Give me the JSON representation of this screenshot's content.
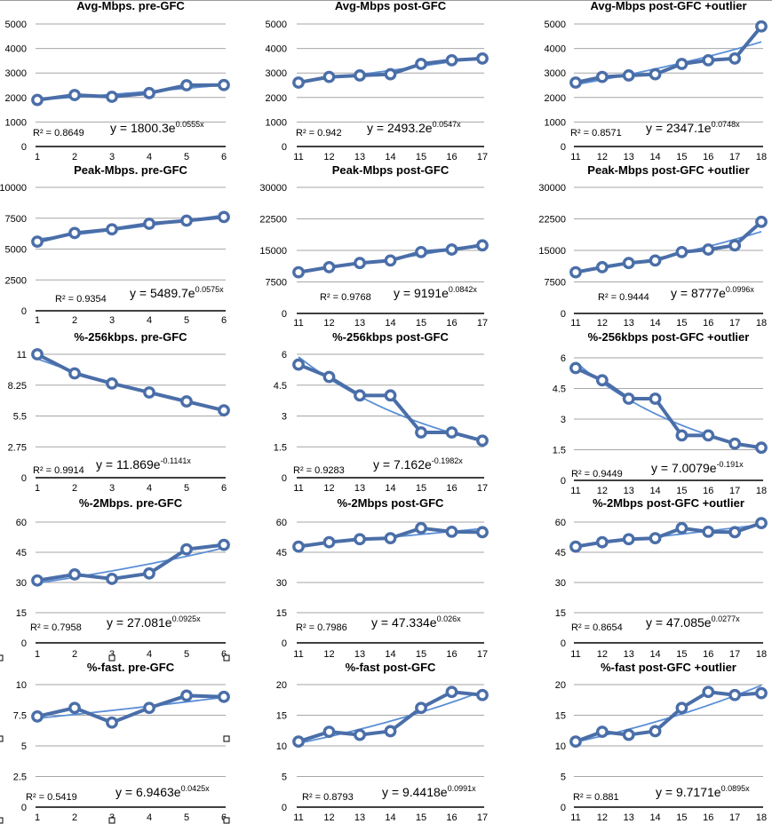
{
  "page": {
    "description": "Grid of 15 line charts with exponential trendlines (5 metrics x pre-GFC / post-GFC / post-GFC +outlier)",
    "colors": {
      "series": "#4a6ea8",
      "marker_fill": "#ffffff",
      "trendline": "#5b8fd6",
      "gridline": "#a6a6a6",
      "axis": "#000000"
    }
  },
  "chart_data": [
    {
      "type": "line",
      "title": "Avg-Mbps.  pre-GFC",
      "x": [
        1,
        2,
        3,
        4,
        5,
        6
      ],
      "series": [
        {
          "name": "Avg-Mbps",
          "values": [
            1900,
            2100,
            2030,
            2180,
            2500,
            2510
          ]
        }
      ],
      "ylim": [
        0,
        5000
      ],
      "yticks": [
        0,
        1000,
        2000,
        3000,
        4000,
        5000
      ],
      "ytick_labels": [
        "0",
        "1000",
        "2000",
        "3000",
        "4000",
        "5000"
      ],
      "xtick_labels": [
        "1",
        "2",
        "3",
        "4",
        "5",
        "6"
      ],
      "grid": true,
      "trendline": {
        "type": "exponential",
        "a": 1800.3,
        "b": 0.0555,
        "x_offset": 0,
        "equation": "y = 1800.3e",
        "exponent": "0.0555x",
        "r2_label": "R² = 0.8649"
      }
    },
    {
      "type": "line",
      "title": "Avg-Mbps post-GFC",
      "x": [
        11,
        12,
        13,
        14,
        15,
        16,
        17
      ],
      "series": [
        {
          "name": "Avg-Mbps",
          "values": [
            2610,
            2840,
            2900,
            2950,
            3370,
            3520,
            3590
          ]
        }
      ],
      "ylim": [
        0,
        5000
      ],
      "yticks": [
        0,
        1000,
        2000,
        3000,
        4000,
        5000
      ],
      "ytick_labels": [
        "0",
        "1000",
        "2000",
        "3000",
        "4000",
        "5000"
      ],
      "xtick_labels": [
        "11",
        "12",
        "13",
        "14",
        "15",
        "16",
        "17"
      ],
      "grid": true,
      "trendline": {
        "type": "exponential",
        "a": 2493.2,
        "b": 0.0547,
        "x_offset": 10,
        "equation": "y = 2493.2e",
        "exponent": "0.0547x",
        "r2_label": "R² = 0.942"
      }
    },
    {
      "type": "line",
      "title": "Avg-Mbps post-GFC +outlier",
      "x": [
        11,
        12,
        13,
        14,
        15,
        16,
        17,
        18
      ],
      "series": [
        {
          "name": "Avg-Mbps",
          "values": [
            2610,
            2840,
            2900,
            2950,
            3370,
            3520,
            3590,
            4900
          ]
        }
      ],
      "ylim": [
        0,
        5000
      ],
      "yticks": [
        0,
        1000,
        2000,
        3000,
        4000,
        5000
      ],
      "ytick_labels": [
        "0",
        "1000",
        "2000",
        "3000",
        "4000",
        "5000"
      ],
      "xtick_labels": [
        "11",
        "12",
        "13",
        "14",
        "15",
        "16",
        "17",
        "18"
      ],
      "grid": true,
      "trendline": {
        "type": "exponential",
        "a": 2347.1,
        "b": 0.0748,
        "x_offset": 10,
        "equation": "y = 2347.1e",
        "exponent": "0.0748x",
        "r2_label": "R² = 0.8571"
      }
    },
    {
      "type": "line",
      "title": "Peak-Mbps.  pre-GFC",
      "x": [
        1,
        2,
        3,
        4,
        5,
        6
      ],
      "series": [
        {
          "name": "Peak-Mbps",
          "values": [
            5600,
            6300,
            6600,
            7050,
            7300,
            7600
          ]
        }
      ],
      "ylim": [
        0,
        10000
      ],
      "yticks": [
        0,
        2500,
        5000,
        7500,
        10000
      ],
      "ytick_labels": [
        "0",
        "2500",
        "5000",
        "7500",
        "10000"
      ],
      "xtick_labels": [
        "1",
        "2",
        "3",
        "4",
        "5",
        "6"
      ],
      "grid": true,
      "trendline": {
        "type": "exponential",
        "a": 5489.7,
        "b": 0.0575,
        "x_offset": 0,
        "equation": "y = 5489.7e",
        "exponent": "0.0575x",
        "r2_label": "R² = 0.9354"
      }
    },
    {
      "type": "line",
      "title": "Peak-Mbps post-GFC",
      "x": [
        11,
        12,
        13,
        14,
        15,
        16,
        17
      ],
      "series": [
        {
          "name": "Peak-Mbps",
          "values": [
            9800,
            11000,
            12000,
            12600,
            14600,
            15200,
            16200
          ]
        }
      ],
      "ylim": [
        0,
        30000
      ],
      "yticks": [
        0,
        7500,
        15000,
        22500,
        30000
      ],
      "ytick_labels": [
        "0",
        "7500",
        "15000",
        "22500",
        "30000"
      ],
      "xtick_labels": [
        "11",
        "12",
        "13",
        "14",
        "15",
        "16",
        "17"
      ],
      "grid": true,
      "trendline": {
        "type": "exponential",
        "a": 9191,
        "b": 0.0842,
        "x_offset": 10,
        "equation": "y = 9191e",
        "exponent": "0.0842x",
        "r2_label": "R² = 0.9768"
      }
    },
    {
      "type": "line",
      "title": "Peak-Mbps post-GFC +outlier",
      "x": [
        11,
        12,
        13,
        14,
        15,
        16,
        17,
        18
      ],
      "series": [
        {
          "name": "Peak-Mbps",
          "values": [
            9800,
            11000,
            12000,
            12600,
            14600,
            15200,
            16200,
            21800
          ]
        }
      ],
      "ylim": [
        0,
        30000
      ],
      "yticks": [
        0,
        7500,
        15000,
        22500,
        30000
      ],
      "ytick_labels": [
        "0",
        "7500",
        "15000",
        "22500",
        "30000"
      ],
      "xtick_labels": [
        "11",
        "12",
        "13",
        "14",
        "15",
        "16",
        "17",
        "18"
      ],
      "grid": true,
      "trendline": {
        "type": "exponential",
        "a": 8777,
        "b": 0.0996,
        "x_offset": 10,
        "equation": "y = 8777e",
        "exponent": "0.0996x",
        "r2_label": "R² = 0.9444"
      }
    },
    {
      "type": "line",
      "title": "%-256kbps.  pre-GFC",
      "x": [
        1,
        2,
        3,
        4,
        5,
        6
      ],
      "series": [
        {
          "name": "%-256kbps",
          "values": [
            11.0,
            9.3,
            8.4,
            7.6,
            6.8,
            6.0
          ]
        }
      ],
      "ylim": [
        0,
        11
      ],
      "yticks": [
        0,
        2.75,
        5.5,
        8.25,
        11
      ],
      "ytick_labels": [
        "0",
        "2.75",
        "5.5",
        "8.25",
        "11"
      ],
      "xtick_labels": [
        "1",
        "2",
        "3",
        "4",
        "5",
        "6"
      ],
      "grid": true,
      "trendline": {
        "type": "exponential",
        "a": 11.869,
        "b": -0.1141,
        "x_offset": 0,
        "equation": "y = 11.869e",
        "exponent": "-0.1141x",
        "r2_label": "R² = 0.9914"
      }
    },
    {
      "type": "line",
      "title": "%-256kbps post-GFC",
      "x": [
        11,
        12,
        13,
        14,
        15,
        16,
        17
      ],
      "series": [
        {
          "name": "%-256kbps",
          "values": [
            5.5,
            4.9,
            4.0,
            4.0,
            2.2,
            2.2,
            1.8
          ]
        }
      ],
      "ylim": [
        0,
        6
      ],
      "yticks": [
        0,
        1.5,
        3,
        4.5,
        6
      ],
      "ytick_labels": [
        "0",
        "1.5",
        "3",
        "4.5",
        "6"
      ],
      "xtick_labels": [
        "11",
        "12",
        "13",
        "14",
        "15",
        "16",
        "17"
      ],
      "grid": true,
      "trendline": {
        "type": "exponential",
        "a": 7.162,
        "b": -0.1982,
        "x_offset": 10,
        "equation": "y = 7.162e",
        "exponent": "-0.1982x",
        "r2_label": "R² = 0.9283"
      }
    },
    {
      "type": "line",
      "title": "%-256kbps post-GFC +outlier",
      "x": [
        11,
        12,
        13,
        14,
        15,
        16,
        17,
        18
      ],
      "series": [
        {
          "name": "%-256kbps",
          "values": [
            5.5,
            4.9,
            4.0,
            4.0,
            2.2,
            2.2,
            1.8,
            1.6
          ]
        }
      ],
      "ylim": [
        0,
        6
      ],
      "yticks": [
        0,
        1.5,
        3,
        4.5,
        6
      ],
      "ytick_labels": [
        "0",
        "1.5",
        "3",
        "4.5",
        "6"
      ],
      "xtick_labels": [
        "11",
        "12",
        "13",
        "14",
        "15",
        "16",
        "17",
        "18"
      ],
      "grid": true,
      "trendline": {
        "type": "exponential",
        "a": 7.0079,
        "b": -0.191,
        "x_offset": 10,
        "equation": "y = 7.0079e",
        "exponent": "-0.191x",
        "r2_label": "R² = 0.9449"
      }
    },
    {
      "type": "line",
      "title": "%-2Mbps.  pre-GFC",
      "x": [
        1,
        2,
        3,
        4,
        5,
        6
      ],
      "series": [
        {
          "name": "%-2Mbps",
          "values": [
            31,
            34,
            31.8,
            34.5,
            46.5,
            48.7
          ]
        }
      ],
      "ylim": [
        0,
        60
      ],
      "yticks": [
        0,
        15,
        30,
        45,
        60
      ],
      "ytick_labels": [
        "0",
        "15",
        "30",
        "45",
        "60"
      ],
      "xtick_labels": [
        "1",
        "2",
        "3",
        "4",
        "5",
        "6"
      ],
      "grid": true,
      "trendline": {
        "type": "exponential",
        "a": 27.081,
        "b": 0.0925,
        "x_offset": 0,
        "equation": "y = 27.081e",
        "exponent": "0.0925x",
        "r2_label": "R² = 0.7958"
      }
    },
    {
      "type": "line",
      "title": "%-2Mbps post-GFC",
      "x": [
        11,
        12,
        13,
        14,
        15,
        16,
        17
      ],
      "series": [
        {
          "name": "%-2Mbps",
          "values": [
            47.8,
            50,
            51.5,
            52,
            57,
            55.2,
            55
          ]
        }
      ],
      "ylim": [
        0,
        60
      ],
      "yticks": [
        0,
        15,
        30,
        45,
        60
      ],
      "ytick_labels": [
        "0",
        "15",
        "30",
        "45",
        "60"
      ],
      "xtick_labels": [
        "11",
        "12",
        "13",
        "14",
        "15",
        "16",
        "17"
      ],
      "grid": true,
      "trendline": {
        "type": "exponential",
        "a": 47.334,
        "b": 0.026,
        "x_offset": 10,
        "equation": "y = 47.334e",
        "exponent": "0.026x",
        "r2_label": "R² = 0.7986"
      }
    },
    {
      "type": "line",
      "title": "%-2Mbps post-GFC +outlier",
      "x": [
        11,
        12,
        13,
        14,
        15,
        16,
        17,
        18
      ],
      "series": [
        {
          "name": "%-2Mbps",
          "values": [
            47.8,
            50,
            51.5,
            52,
            57,
            55.2,
            55,
            59.5
          ]
        }
      ],
      "ylim": [
        0,
        60
      ],
      "yticks": [
        0,
        15,
        30,
        45,
        60
      ],
      "ytick_labels": [
        "0",
        "15",
        "30",
        "45",
        "60"
      ],
      "xtick_labels": [
        "11",
        "12",
        "13",
        "14",
        "15",
        "16",
        "17",
        "18"
      ],
      "grid": true,
      "trendline": {
        "type": "exponential",
        "a": 47.085,
        "b": 0.0277,
        "x_offset": 10,
        "equation": "y = 47.085e",
        "exponent": "0.0277x",
        "r2_label": "R² = 0.8654"
      }
    },
    {
      "type": "line",
      "title": "%-fast.  pre-GFC",
      "x": [
        1,
        2,
        3,
        4,
        5,
        6
      ],
      "series": [
        {
          "name": "%-fast",
          "values": [
            7.4,
            8.1,
            6.9,
            8.1,
            9.1,
            9.0
          ]
        }
      ],
      "ylim": [
        0,
        10
      ],
      "yticks": [
        0,
        2.5,
        5,
        7.5,
        10
      ],
      "ytick_labels": [
        "0",
        "2.5",
        "5",
        "7.5",
        "10"
      ],
      "xtick_labels": [
        "1",
        "2",
        "3",
        "4",
        "5",
        "6"
      ],
      "grid": true,
      "trendline": {
        "type": "exponential",
        "a": 6.9463,
        "b": 0.0425,
        "x_offset": 0,
        "equation": "y = 6.9463e",
        "exponent": "0.0425x",
        "r2_label": "R² = 0.5419"
      }
    },
    {
      "type": "line",
      "title": "%-fast post-GFC",
      "x": [
        11,
        12,
        13,
        14,
        15,
        16,
        17
      ],
      "series": [
        {
          "name": "%-fast",
          "values": [
            10.7,
            12.3,
            11.8,
            12.4,
            16.2,
            18.8,
            18.3
          ]
        }
      ],
      "ylim": [
        0,
        20
      ],
      "yticks": [
        0,
        5,
        10,
        15,
        20
      ],
      "ytick_labels": [
        "0",
        "5",
        "10",
        "15",
        "20"
      ],
      "xtick_labels": [
        "11",
        "12",
        "13",
        "14",
        "15",
        "16",
        "17"
      ],
      "grid": true,
      "trendline": {
        "type": "exponential",
        "a": 9.4418,
        "b": 0.0991,
        "x_offset": 10,
        "equation": "y = 9.4418e",
        "exponent": "0.0991x",
        "r2_label": "R² = 0.8793"
      }
    },
    {
      "type": "line",
      "title": "%-fast post-GFC +outlier",
      "x": [
        11,
        12,
        13,
        14,
        15,
        16,
        17,
        18
      ],
      "series": [
        {
          "name": "%-fast",
          "values": [
            10.7,
            12.3,
            11.8,
            12.4,
            16.2,
            18.8,
            18.3,
            18.6
          ]
        }
      ],
      "ylim": [
        0,
        20
      ],
      "yticks": [
        0,
        5,
        10,
        15,
        20
      ],
      "ytick_labels": [
        "0",
        "5",
        "10",
        "15",
        "20"
      ],
      "xtick_labels": [
        "11",
        "12",
        "13",
        "14",
        "15",
        "16",
        "17",
        "18"
      ],
      "grid": true,
      "trendline": {
        "type": "exponential",
        "a": 9.7171,
        "b": 0.0895,
        "x_offset": 10,
        "equation": "y = 9.7171e",
        "exponent": "0.0895x",
        "r2_label": "R² = 0.881"
      }
    }
  ]
}
